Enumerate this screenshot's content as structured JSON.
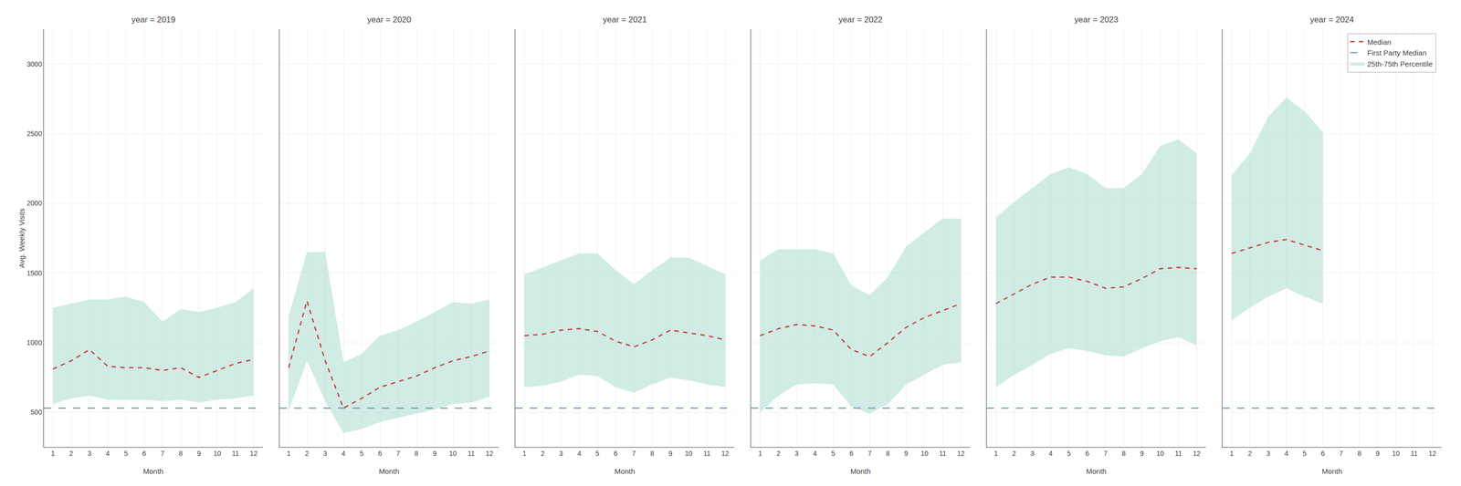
{
  "chart_data": [
    {
      "type": "line",
      "title": "year = 2019",
      "x_label": "Month",
      "y_label": "Avg. Weekly Visits",
      "x": [
        1,
        2,
        3,
        4,
        5,
        6,
        7,
        8,
        9,
        10,
        11,
        12
      ],
      "xlim": [
        0.5,
        12.5
      ],
      "xticks": [
        1,
        2,
        3,
        4,
        5,
        6,
        7,
        8,
        9,
        10,
        11,
        12
      ],
      "ylim": [
        250,
        3250
      ],
      "yticks": [
        500,
        1000,
        1500,
        2000,
        2500,
        3000
      ],
      "grid": true,
      "series": [
        {
          "name": "Median",
          "color": "#cc3333",
          "line_style": "dash",
          "values": [
            810,
            870,
            950,
            830,
            820,
            820,
            800,
            820,
            750,
            800,
            850,
            880
          ]
        },
        {
          "name": "First Party Median",
          "type": "hline",
          "color": "#5588bb",
          "line_style": "longdash",
          "value": 530
        },
        {
          "name": "25th-75th Percentile",
          "type": "band",
          "color": "#aaddd0",
          "low": [
            560,
            600,
            620,
            590,
            590,
            590,
            580,
            590,
            570,
            590,
            600,
            620
          ],
          "high": [
            1250,
            1280,
            1310,
            1310,
            1330,
            1290,
            1150,
            1240,
            1220,
            1250,
            1290,
            1390
          ]
        }
      ]
    },
    {
      "type": "line",
      "title": "year = 2020",
      "x_label": "Month",
      "tick_labels": "x",
      "x": [
        1,
        2,
        3,
        4,
        5,
        6,
        7,
        8,
        9,
        10,
        11,
        12
      ],
      "xlim": [
        0.5,
        12.5
      ],
      "xticks": [
        1,
        2,
        3,
        4,
        5,
        6,
        7,
        8,
        9,
        10,
        11,
        12
      ],
      "ylim": [
        250,
        3250
      ],
      "yticks": [
        500,
        1000,
        1500,
        2000,
        2500,
        3000
      ],
      "grid": true,
      "series": [
        {
          "name": "Median",
          "color": "#cc3333",
          "line_style": "dash",
          "values": [
            820,
            1300,
            870,
            530,
            600,
            680,
            720,
            760,
            820,
            870,
            900,
            940
          ]
        },
        {
          "name": "First Party Median",
          "type": "hline",
          "color": "#5588bb",
          "line_style": "longdash",
          "value": 530
        },
        {
          "name": "25th-75th Percentile",
          "type": "band",
          "color": "#aaddd0",
          "low": [
            510,
            870,
            580,
            350,
            380,
            430,
            460,
            490,
            520,
            560,
            570,
            610
          ],
          "high": [
            1190,
            1650,
            1650,
            860,
            920,
            1050,
            1090,
            1150,
            1220,
            1290,
            1280,
            1310
          ]
        }
      ]
    },
    {
      "type": "line",
      "title": "year = 2021",
      "x_label": "Month",
      "tick_labels": "x",
      "x": [
        1,
        2,
        3,
        4,
        5,
        6,
        7,
        8,
        9,
        10,
        11,
        12
      ],
      "xlim": [
        0.5,
        12.5
      ],
      "xticks": [
        1,
        2,
        3,
        4,
        5,
        6,
        7,
        8,
        9,
        10,
        11,
        12
      ],
      "ylim": [
        250,
        3250
      ],
      "yticks": [
        500,
        1000,
        1500,
        2000,
        2500,
        3000
      ],
      "grid": true,
      "series": [
        {
          "name": "Median",
          "color": "#cc3333",
          "line_style": "dash",
          "values": [
            1050,
            1060,
            1090,
            1100,
            1080,
            1010,
            970,
            1020,
            1090,
            1070,
            1050,
            1020
          ]
        },
        {
          "name": "First Party Median",
          "type": "hline",
          "color": "#5588bb",
          "line_style": "longdash",
          "value": 530
        },
        {
          "name": "25th-75th Percentile",
          "type": "band",
          "color": "#aaddd0",
          "low": [
            680,
            690,
            720,
            770,
            760,
            680,
            640,
            700,
            750,
            730,
            700,
            680
          ],
          "high": [
            1490,
            1540,
            1590,
            1640,
            1640,
            1520,
            1420,
            1520,
            1610,
            1610,
            1550,
            1490
          ]
        }
      ]
    },
    {
      "type": "line",
      "title": "year = 2022",
      "x_label": "Month",
      "tick_labels": "x",
      "x": [
        1,
        2,
        3,
        4,
        5,
        6,
        7,
        8,
        9,
        10,
        11,
        12
      ],
      "xlim": [
        0.5,
        12.5
      ],
      "xticks": [
        1,
        2,
        3,
        4,
        5,
        6,
        7,
        8,
        9,
        10,
        11,
        12
      ],
      "ylim": [
        250,
        3250
      ],
      "yticks": [
        500,
        1000,
        1500,
        2000,
        2500,
        3000
      ],
      "grid": true,
      "series": [
        {
          "name": "Median",
          "color": "#cc3333",
          "line_style": "dash",
          "values": [
            1050,
            1100,
            1130,
            1120,
            1090,
            950,
            900,
            1000,
            1110,
            1180,
            1230,
            1280
          ]
        },
        {
          "name": "First Party Median",
          "type": "hline",
          "color": "#5588bb",
          "line_style": "longdash",
          "value": 530
        },
        {
          "name": "25th-75th Percentile",
          "type": "band",
          "color": "#aaddd0",
          "low": [
            500,
            620,
            700,
            710,
            700,
            540,
            490,
            560,
            700,
            770,
            840,
            860
          ],
          "high": [
            1590,
            1670,
            1670,
            1670,
            1640,
            1410,
            1340,
            1470,
            1690,
            1790,
            1890,
            1890
          ]
        }
      ]
    },
    {
      "type": "line",
      "title": "year = 2023",
      "x_label": "Month",
      "tick_labels": "x",
      "x": [
        1,
        2,
        3,
        4,
        5,
        6,
        7,
        8,
        9,
        10,
        11,
        12
      ],
      "xlim": [
        0.5,
        12.5
      ],
      "xticks": [
        1,
        2,
        3,
        4,
        5,
        6,
        7,
        8,
        9,
        10,
        11,
        12
      ],
      "ylim": [
        250,
        3250
      ],
      "yticks": [
        500,
        1000,
        1500,
        2000,
        2500,
        3000
      ],
      "grid": true,
      "series": [
        {
          "name": "Median",
          "color": "#cc3333",
          "line_style": "dash",
          "values": [
            1280,
            1350,
            1420,
            1470,
            1470,
            1440,
            1390,
            1400,
            1460,
            1530,
            1540,
            1530
          ]
        },
        {
          "name": "First Party Median",
          "type": "hline",
          "color": "#5588bb",
          "line_style": "longdash",
          "value": 530
        },
        {
          "name": "25th-75th Percentile",
          "type": "band",
          "color": "#aaddd0",
          "low": [
            680,
            770,
            840,
            920,
            960,
            940,
            910,
            900,
            960,
            1010,
            1040,
            980
          ],
          "high": [
            1900,
            2010,
            2110,
            2210,
            2260,
            2210,
            2110,
            2110,
            2210,
            2410,
            2460,
            2360
          ]
        }
      ]
    },
    {
      "type": "line",
      "title": "year = 2024",
      "x_label": "Month",
      "tick_labels": "x",
      "legend": "upper right",
      "x": [
        1,
        2,
        3,
        4,
        5,
        6,
        7,
        8,
        9,
        10,
        11,
        12
      ],
      "xlim": [
        0.5,
        12.5
      ],
      "xticks": [
        1,
        2,
        3,
        4,
        5,
        6,
        7,
        8,
        9,
        10,
        11,
        12
      ],
      "ylim": [
        250,
        3250
      ],
      "yticks": [
        500,
        1000,
        1500,
        2000,
        2500,
        3000
      ],
      "grid": true,
      "series": [
        {
          "name": "Median",
          "color": "#cc3333",
          "line_style": "dash",
          "values": [
            1640,
            1680,
            1720,
            1740,
            1700,
            1660,
            null,
            null,
            null,
            null,
            null,
            null
          ]
        },
        {
          "name": "First Party Median",
          "type": "hline",
          "color": "#5588bb",
          "line_style": "longdash",
          "value": 530
        },
        {
          "name": "25th-75th Percentile",
          "type": "band",
          "color": "#aaddd0",
          "low": [
            1160,
            1250,
            1330,
            1390,
            1330,
            1280,
            null,
            null,
            null,
            null,
            null,
            null
          ],
          "high": [
            2200,
            2360,
            2620,
            2760,
            2660,
            2510,
            null,
            null,
            null,
            null,
            null,
            null
          ]
        }
      ]
    }
  ]
}
